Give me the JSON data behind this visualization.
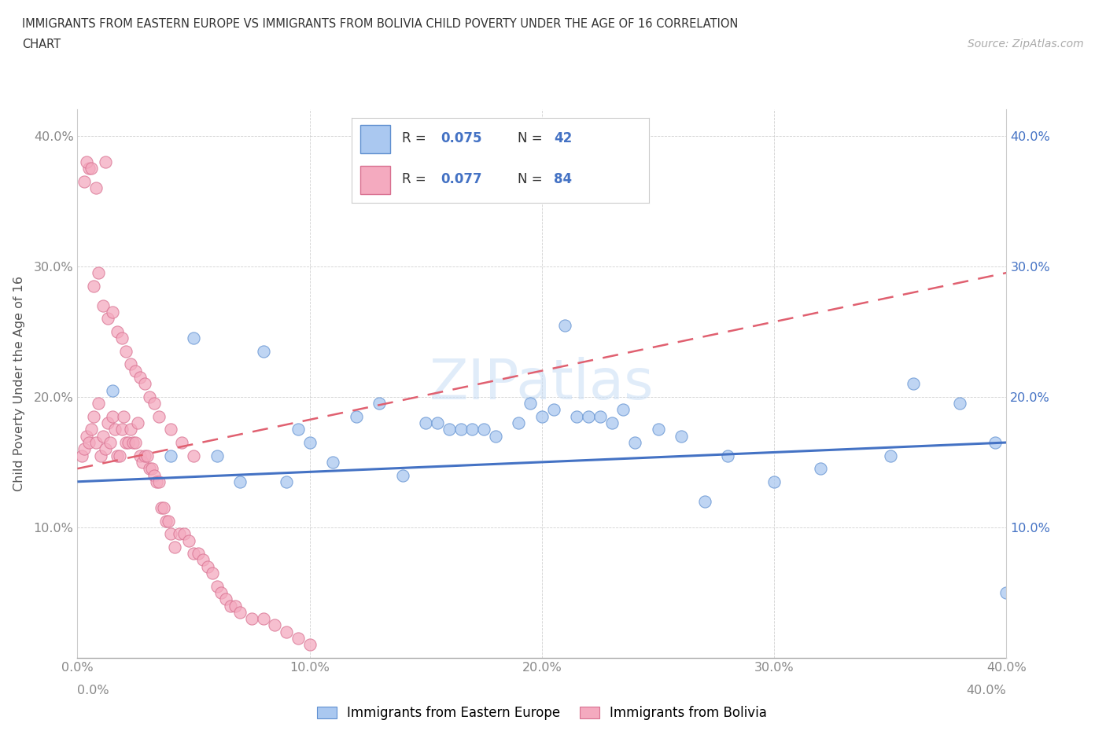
{
  "title_line1": "IMMIGRANTS FROM EASTERN EUROPE VS IMMIGRANTS FROM BOLIVIA CHILD POVERTY UNDER THE AGE OF 16 CORRELATION",
  "title_line2": "CHART",
  "source_text": "Source: ZipAtlas.com",
  "ylabel": "Child Poverty Under the Age of 16",
  "xlim": [
    0.0,
    0.4
  ],
  "ylim": [
    0.0,
    0.42
  ],
  "xticks": [
    0.0,
    0.1,
    0.2,
    0.3,
    0.4
  ],
  "yticks": [
    0.1,
    0.2,
    0.3,
    0.4
  ],
  "xtick_labels": [
    "0.0%",
    "10.0%",
    "20.0%",
    "30.0%",
    "40.0%"
  ],
  "ytick_labels_left": [
    "10.0%",
    "20.0%",
    "30.0%",
    "40.0%"
  ],
  "ytick_labels_right": [
    "10.0%",
    "20.0%",
    "30.0%",
    "40.0%"
  ],
  "legend_r1": "R = 0.075",
  "legend_n1": "N = 42",
  "legend_r2": "R = 0.077",
  "legend_n2": "N = 84",
  "color_eastern": "#aac8f0",
  "color_bolivia": "#f4aabf",
  "edge_eastern": "#6090d0",
  "edge_bolivia": "#d87090",
  "line_eastern_color": "#4472c4",
  "line_bolivia_color": "#e06070",
  "watermark": "ZIPatlas",
  "ee_trend": [
    0.135,
    0.165
  ],
  "bo_trend": [
    0.145,
    0.295
  ],
  "eastern_europe_x": [
    0.015,
    0.05,
    0.08,
    0.095,
    0.1,
    0.12,
    0.13,
    0.15,
    0.155,
    0.16,
    0.165,
    0.17,
    0.175,
    0.18,
    0.19,
    0.195,
    0.2,
    0.205,
    0.21,
    0.215,
    0.22,
    0.225,
    0.23,
    0.235,
    0.25,
    0.26,
    0.28,
    0.3,
    0.32,
    0.35,
    0.36,
    0.38,
    0.395,
    0.04,
    0.06,
    0.07,
    0.09,
    0.11,
    0.14,
    0.24,
    0.27,
    0.4
  ],
  "eastern_europe_y": [
    0.205,
    0.245,
    0.235,
    0.175,
    0.165,
    0.185,
    0.195,
    0.18,
    0.18,
    0.175,
    0.175,
    0.175,
    0.175,
    0.17,
    0.18,
    0.195,
    0.185,
    0.19,
    0.255,
    0.185,
    0.185,
    0.185,
    0.18,
    0.19,
    0.175,
    0.17,
    0.155,
    0.135,
    0.145,
    0.155,
    0.21,
    0.195,
    0.165,
    0.155,
    0.155,
    0.135,
    0.135,
    0.15,
    0.14,
    0.165,
    0.12,
    0.05
  ],
  "bolivia_x": [
    0.002,
    0.003,
    0.004,
    0.005,
    0.006,
    0.007,
    0.008,
    0.009,
    0.01,
    0.011,
    0.012,
    0.013,
    0.014,
    0.015,
    0.016,
    0.017,
    0.018,
    0.019,
    0.02,
    0.021,
    0.022,
    0.023,
    0.024,
    0.025,
    0.026,
    0.027,
    0.028,
    0.029,
    0.03,
    0.031,
    0.032,
    0.033,
    0.034,
    0.035,
    0.036,
    0.037,
    0.038,
    0.039,
    0.04,
    0.042,
    0.044,
    0.046,
    0.048,
    0.05,
    0.052,
    0.054,
    0.056,
    0.058,
    0.06,
    0.062,
    0.064,
    0.066,
    0.068,
    0.07,
    0.075,
    0.08,
    0.085,
    0.09,
    0.095,
    0.1,
    0.003,
    0.005,
    0.007,
    0.009,
    0.011,
    0.013,
    0.015,
    0.017,
    0.019,
    0.021,
    0.023,
    0.025,
    0.027,
    0.029,
    0.031,
    0.033,
    0.035,
    0.04,
    0.045,
    0.05,
    0.004,
    0.006,
    0.008,
    0.012
  ],
  "bolivia_y": [
    0.155,
    0.16,
    0.17,
    0.165,
    0.175,
    0.185,
    0.165,
    0.195,
    0.155,
    0.17,
    0.16,
    0.18,
    0.165,
    0.185,
    0.175,
    0.155,
    0.155,
    0.175,
    0.185,
    0.165,
    0.165,
    0.175,
    0.165,
    0.165,
    0.18,
    0.155,
    0.15,
    0.155,
    0.155,
    0.145,
    0.145,
    0.14,
    0.135,
    0.135,
    0.115,
    0.115,
    0.105,
    0.105,
    0.095,
    0.085,
    0.095,
    0.095,
    0.09,
    0.08,
    0.08,
    0.075,
    0.07,
    0.065,
    0.055,
    0.05,
    0.045,
    0.04,
    0.04,
    0.035,
    0.03,
    0.03,
    0.025,
    0.02,
    0.015,
    0.01,
    0.365,
    0.375,
    0.285,
    0.295,
    0.27,
    0.26,
    0.265,
    0.25,
    0.245,
    0.235,
    0.225,
    0.22,
    0.215,
    0.21,
    0.2,
    0.195,
    0.185,
    0.175,
    0.165,
    0.155,
    0.38,
    0.375,
    0.36,
    0.38
  ]
}
